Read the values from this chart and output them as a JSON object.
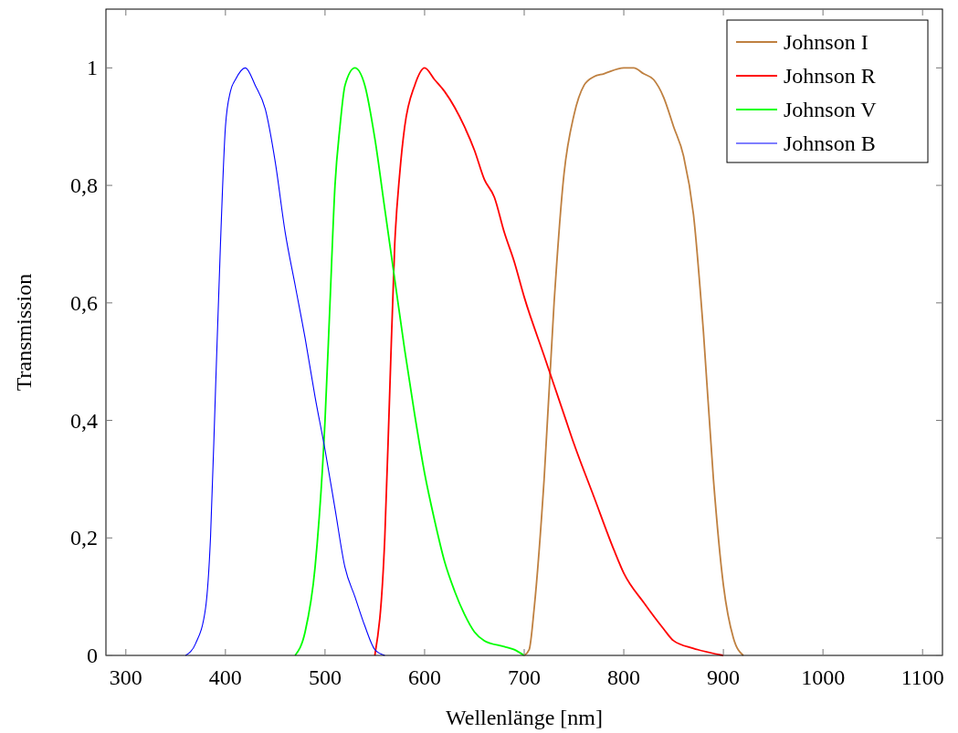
{
  "chart_data": {
    "type": "line",
    "xlabel": "Wellenlänge [nm]",
    "ylabel": "Transmission",
    "xlim": [
      280,
      1120
    ],
    "ylim": [
      0,
      1.1
    ],
    "xticks": [
      300,
      400,
      500,
      600,
      700,
      800,
      900,
      1000,
      1100
    ],
    "yticks": [
      0,
      {
        "value": 0.2,
        "label": "0,2"
      },
      {
        "value": 0.4,
        "label": "0,4"
      },
      {
        "value": 0.6,
        "label": "0,6"
      },
      {
        "value": 0.8,
        "label": "0,8"
      },
      1
    ],
    "legend": "top right",
    "grid": false,
    "series": [
      {
        "name": "Johnson I",
        "color": "#bf8040",
        "x": [
          700,
          705,
          710,
          720,
          730,
          740,
          750,
          760,
          770,
          780,
          800,
          810,
          820,
          830,
          840,
          850,
          860,
          870,
          880,
          890,
          900,
          910,
          920
        ],
        "values": [
          0,
          0.01,
          0.08,
          0.3,
          0.6,
          0.82,
          0.92,
          0.97,
          0.985,
          0.99,
          1.0,
          1.0,
          0.99,
          0.98,
          0.95,
          0.9,
          0.85,
          0.75,
          0.55,
          0.3,
          0.12,
          0.03,
          0
        ]
      },
      {
        "name": "Johnson R",
        "color": "#ff0000",
        "x": [
          550,
          560,
          565,
          570,
          575,
          580,
          590,
          600,
          610,
          620,
          640,
          650,
          660,
          670,
          680,
          690,
          700,
          720,
          740,
          750,
          770,
          790,
          800,
          820,
          840,
          850,
          870,
          900
        ],
        "values": [
          0,
          0.2,
          0.45,
          0.7,
          0.82,
          0.9,
          0.97,
          1.0,
          0.98,
          0.96,
          0.9,
          0.86,
          0.81,
          0.78,
          0.72,
          0.67,
          0.61,
          0.51,
          0.41,
          0.36,
          0.27,
          0.18,
          0.14,
          0.09,
          0.045,
          0.025,
          0.012,
          0
        ]
      },
      {
        "name": "Johnson V",
        "color": "#00ff00",
        "x": [
          470,
          480,
          490,
          500,
          505,
          510,
          515,
          520,
          530,
          540,
          550,
          560,
          570,
          580,
          590,
          600,
          610,
          620,
          630,
          640,
          650,
          660,
          680,
          690,
          700
        ],
        "values": [
          0,
          0.04,
          0.15,
          0.4,
          0.6,
          0.8,
          0.9,
          0.97,
          1.0,
          0.97,
          0.88,
          0.76,
          0.64,
          0.52,
          0.41,
          0.31,
          0.23,
          0.16,
          0.11,
          0.07,
          0.04,
          0.025,
          0.015,
          0.01,
          0
        ]
      },
      {
        "name": "Johnson B",
        "color": "#0000ff",
        "x": [
          360,
          370,
          380,
          385,
          390,
          395,
          400,
          405,
          410,
          420,
          430,
          440,
          450,
          460,
          470,
          480,
          490,
          500,
          510,
          520,
          530,
          540,
          550,
          560
        ],
        "values": [
          0,
          0.02,
          0.08,
          0.2,
          0.45,
          0.7,
          0.9,
          0.96,
          0.98,
          1.0,
          0.97,
          0.93,
          0.84,
          0.72,
          0.63,
          0.54,
          0.44,
          0.35,
          0.25,
          0.15,
          0.1,
          0.05,
          0.01,
          0
        ]
      }
    ]
  }
}
